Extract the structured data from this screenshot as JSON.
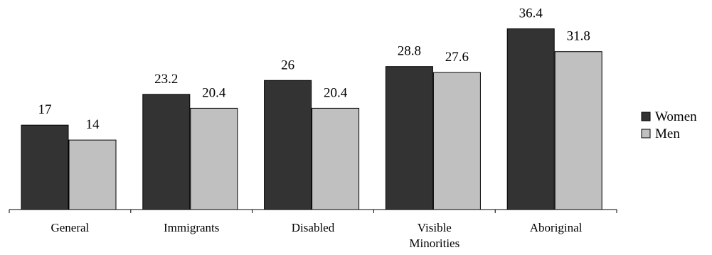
{
  "chart_data": {
    "type": "bar",
    "categories": [
      "General",
      "Immigrants",
      "Disabled",
      "Visible\nMinorities",
      "Aboriginal"
    ],
    "series": [
      {
        "name": "Women",
        "values": [
          17,
          23.2,
          26,
          28.8,
          36.4
        ],
        "color": "#333333"
      },
      {
        "name": "Men",
        "values": [
          14,
          20.4,
          20.4,
          27.6,
          31.8
        ],
        "color": "#c0c0c0"
      }
    ],
    "title": "",
    "xlabel": "",
    "ylabel": "",
    "ylim": [
      0,
      40
    ],
    "grid": false,
    "legend_position": "right"
  }
}
